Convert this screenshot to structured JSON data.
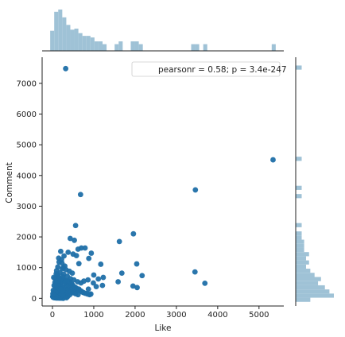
{
  "chart_data": {
    "type": "scatter",
    "xlabel": "Like",
    "ylabel": "Comment",
    "xlim": [
      -250,
      5600
    ],
    "ylim": [
      -250,
      7850
    ],
    "xticks": [
      0,
      1000,
      2000,
      3000,
      4000,
      5000
    ],
    "yticks": [
      0,
      1000,
      2000,
      3000,
      4000,
      5000,
      6000,
      7000
    ],
    "annotation": "pearsonr = 0.58; p = 3.4e-247",
    "annotation_position": "top-right",
    "grid": false,
    "colors": {
      "points": "#1f6fa8",
      "marginal_hist": "#9fc2d6",
      "axis": "#222222"
    },
    "points": [
      [
        320,
        7480
      ],
      [
        5340,
        4510
      ],
      [
        3460,
        3530
      ],
      [
        3450,
        860
      ],
      [
        3690,
        490
      ],
      [
        680,
        3380
      ],
      [
        560,
        2370
      ],
      [
        1960,
        2100
      ],
      [
        1620,
        1850
      ],
      [
        430,
        1950
      ],
      [
        530,
        1890
      ],
      [
        200,
        1530
      ],
      [
        700,
        1640
      ],
      [
        790,
        1640
      ],
      [
        620,
        1600
      ],
      [
        380,
        1500
      ],
      [
        500,
        1440
      ],
      [
        940,
        1470
      ],
      [
        580,
        1390
      ],
      [
        1170,
        1110
      ],
      [
        2040,
        1120
      ],
      [
        150,
        1310
      ],
      [
        880,
        1300
      ],
      [
        640,
        1130
      ],
      [
        1680,
        820
      ],
      [
        2170,
        740
      ],
      [
        1000,
        760
      ],
      [
        1230,
        680
      ],
      [
        1950,
        400
      ],
      [
        2050,
        350
      ],
      [
        1590,
        540
      ],
      [
        1110,
        630
      ],
      [
        990,
        500
      ],
      [
        860,
        600
      ],
      [
        760,
        560
      ],
      [
        690,
        500
      ],
      [
        930,
        140
      ],
      [
        870,
        300
      ],
      [
        1060,
        380
      ],
      [
        1210,
        420
      ],
      [
        230,
        1150
      ],
      [
        300,
        1050
      ],
      [
        330,
        930
      ],
      [
        410,
        880
      ],
      [
        480,
        820
      ],
      [
        270,
        780
      ],
      [
        360,
        720
      ],
      [
        440,
        640
      ],
      [
        520,
        600
      ],
      [
        610,
        540
      ],
      [
        250,
        700
      ],
      [
        150,
        620
      ],
      [
        200,
        520
      ],
      [
        290,
        480
      ],
      [
        340,
        420
      ],
      [
        380,
        390
      ],
      [
        430,
        350
      ],
      [
        470,
        300
      ],
      [
        540,
        280
      ],
      [
        600,
        250
      ],
      [
        100,
        900
      ],
      [
        120,
        780
      ],
      [
        60,
        650
      ],
      [
        90,
        560
      ],
      [
        140,
        470
      ],
      [
        180,
        420
      ],
      [
        220,
        380
      ],
      [
        260,
        330
      ],
      [
        300,
        300
      ],
      [
        350,
        260
      ],
      [
        400,
        220
      ],
      [
        450,
        200
      ],
      [
        500,
        180
      ],
      [
        560,
        150
      ],
      [
        620,
        120
      ],
      [
        40,
        420
      ],
      [
        70,
        360
      ],
      [
        110,
        320
      ],
      [
        160,
        290
      ],
      [
        210,
        250
      ],
      [
        240,
        220
      ],
      [
        280,
        190
      ],
      [
        320,
        170
      ],
      [
        360,
        150
      ],
      [
        420,
        120
      ],
      [
        20,
        260
      ],
      [
        50,
        220
      ],
      [
        80,
        200
      ],
      [
        120,
        180
      ],
      [
        150,
        150
      ],
      [
        190,
        130
      ],
      [
        230,
        110
      ],
      [
        270,
        100
      ],
      [
        310,
        80
      ],
      [
        370,
        60
      ],
      [
        10,
        150
      ],
      [
        30,
        120
      ],
      [
        60,
        100
      ],
      [
        90,
        90
      ],
      [
        130,
        70
      ],
      [
        170,
        60
      ],
      [
        200,
        50
      ],
      [
        250,
        40
      ],
      [
        290,
        30
      ],
      [
        340,
        20
      ],
      [
        5,
        60
      ],
      [
        15,
        40
      ],
      [
        25,
        30
      ],
      [
        45,
        20
      ],
      [
        70,
        15
      ],
      [
        100,
        10
      ],
      [
        140,
        10
      ],
      [
        180,
        5
      ],
      [
        220,
        5
      ],
      [
        260,
        0
      ],
      [
        35,
        80
      ],
      [
        55,
        50
      ],
      [
        75,
        40
      ],
      [
        95,
        30
      ],
      [
        115,
        25
      ],
      [
        135,
        55
      ],
      [
        155,
        45
      ],
      [
        175,
        35
      ],
      [
        195,
        85
      ],
      [
        215,
        75
      ],
      [
        65,
        140
      ],
      [
        85,
        130
      ],
      [
        105,
        160
      ],
      [
        125,
        210
      ],
      [
        145,
        230
      ],
      [
        165,
        190
      ],
      [
        185,
        170
      ],
      [
        205,
        160
      ],
      [
        225,
        140
      ],
      [
        245,
        120
      ],
      [
        75,
        280
      ],
      [
        95,
        250
      ],
      [
        115,
        240
      ],
      [
        135,
        270
      ],
      [
        155,
        340
      ],
      [
        175,
        310
      ],
      [
        195,
        280
      ],
      [
        215,
        300
      ],
      [
        235,
        260
      ],
      [
        255,
        230
      ],
      [
        80,
        470
      ],
      [
        60,
        520
      ],
      [
        110,
        560
      ],
      [
        170,
        660
      ],
      [
        190,
        580
      ],
      [
        210,
        620
      ],
      [
        260,
        560
      ],
      [
        280,
        600
      ],
      [
        310,
        540
      ],
      [
        330,
        580
      ],
      [
        390,
        560
      ],
      [
        420,
        510
      ],
      [
        460,
        470
      ],
      [
        490,
        430
      ],
      [
        510,
        390
      ],
      [
        550,
        360
      ],
      [
        580,
        330
      ],
      [
        640,
        300
      ],
      [
        660,
        260
      ],
      [
        700,
        230
      ],
      [
        730,
        200
      ],
      [
        760,
        180
      ],
      [
        800,
        160
      ],
      [
        850,
        140
      ],
      [
        900,
        120
      ],
      [
        30,
        680
      ],
      [
        130,
        740
      ],
      [
        180,
        840
      ],
      [
        240,
        960
      ],
      [
        260,
        1000
      ],
      [
        160,
        1180
      ],
      [
        220,
        1260
      ],
      [
        280,
        1380
      ],
      [
        130,
        1020
      ],
      [
        90,
        800
      ]
    ]
  }
}
